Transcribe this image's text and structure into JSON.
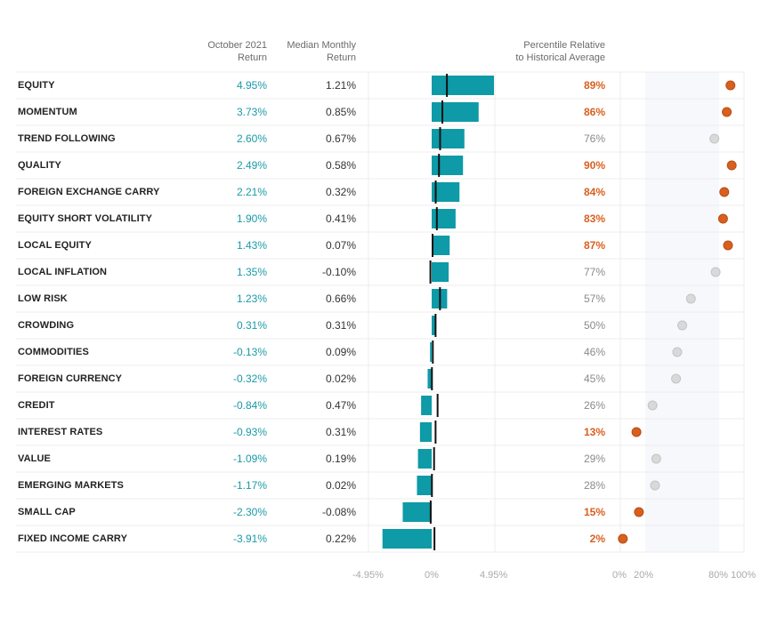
{
  "headers": {
    "oct_line1": "October 2021",
    "oct_line2": "Return",
    "med_line1": "Median Monthly",
    "med_line2": "Return",
    "pct_line1": "Percentile Relative",
    "pct_line2": "to Historical Average"
  },
  "colors": {
    "bar": "#0e9aa7",
    "highlight": "#d95f1e",
    "neutral_dot": "#d9d9d9",
    "neutral_text": "#8a8a8a",
    "teal_text": "#1a9aa6"
  },
  "axis": {
    "bar_ticks": [
      "-4.95%",
      "0%",
      "4.95%"
    ],
    "pct_ticks": [
      "0%",
      "20%",
      "80%",
      "100%"
    ]
  },
  "chart_data": {
    "type": "bar",
    "title": "",
    "xlabel": "",
    "ylabel": "",
    "bar_xlim": [
      -4.95,
      4.95
    ],
    "pct_xlim": [
      0,
      100
    ],
    "categories": [
      "EQUITY",
      "MOMENTUM",
      "TREND FOLLOWING",
      "QUALITY",
      "FOREIGN EXCHANGE CARRY",
      "EQUITY SHORT VOLATILITY",
      "LOCAL EQUITY",
      "LOCAL INFLATION",
      "LOW RISK",
      "CROWDING",
      "COMMODITIES",
      "FOREIGN CURRENCY",
      "CREDIT",
      "INTEREST RATES",
      "VALUE",
      "EMERGING MARKETS",
      "SMALL CAP",
      "FIXED INCOME CARRY"
    ],
    "series": [
      {
        "name": "October 2021 Return",
        "values": [
          4.95,
          3.73,
          2.6,
          2.49,
          2.21,
          1.9,
          1.43,
          1.35,
          1.23,
          0.31,
          -0.13,
          -0.32,
          -0.84,
          -0.93,
          -1.09,
          -1.17,
          -2.3,
          -3.91
        ],
        "labels": [
          "4.95%",
          "3.73%",
          "2.60%",
          "2.49%",
          "2.21%",
          "1.90%",
          "1.43%",
          "1.35%",
          "1.23%",
          "0.31%",
          "-0.13%",
          "-0.32%",
          "-0.84%",
          "-0.93%",
          "-1.09%",
          "-1.17%",
          "-2.30%",
          "-3.91%"
        ]
      },
      {
        "name": "Median Monthly Return",
        "values": [
          1.21,
          0.85,
          0.67,
          0.58,
          0.32,
          0.41,
          0.07,
          -0.1,
          0.66,
          0.31,
          0.09,
          0.02,
          0.47,
          0.31,
          0.19,
          0.02,
          -0.08,
          0.22
        ],
        "labels": [
          "1.21%",
          "0.85%",
          "0.67%",
          "0.58%",
          "0.32%",
          "0.41%",
          "0.07%",
          "-0.10%",
          "0.66%",
          "0.31%",
          "0.09%",
          "0.02%",
          "0.47%",
          "0.31%",
          "0.19%",
          "0.02%",
          "-0.08%",
          "0.22%"
        ]
      },
      {
        "name": "Percentile Relative to Historical Average",
        "values": [
          89,
          86,
          76,
          90,
          84,
          83,
          87,
          77,
          57,
          50,
          46,
          45,
          26,
          13,
          29,
          28,
          15,
          2
        ],
        "labels": [
          "89%",
          "86%",
          "76%",
          "90%",
          "84%",
          "83%",
          "87%",
          "77%",
          "57%",
          "50%",
          "46%",
          "45%",
          "26%",
          "13%",
          "29%",
          "28%",
          "15%",
          "2%"
        ],
        "highlighted": [
          true,
          true,
          false,
          true,
          true,
          true,
          true,
          false,
          false,
          false,
          false,
          false,
          false,
          true,
          false,
          false,
          true,
          true
        ]
      }
    ]
  }
}
